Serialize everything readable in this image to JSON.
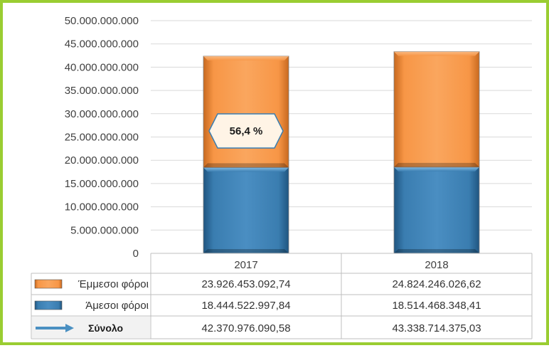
{
  "chart_data": {
    "type": "bar",
    "stacked": true,
    "categories": [
      "2017",
      "2018"
    ],
    "series": [
      {
        "name": "Άμεσοι φόροι",
        "values": [
          18444522997.84,
          18514468348.41
        ],
        "color": "#3A7DB0",
        "labels": [
          "18.444.522.997,84",
          "18.514.468.348,41"
        ]
      },
      {
        "name": "Έμμεσοι φόροι",
        "values": [
          23926453092.74,
          24824246026.62
        ],
        "color": "#F79646",
        "labels": [
          "23.926.453.092,74",
          "24.824.246.026,62"
        ]
      }
    ],
    "totals": {
      "name": "Σύνολο",
      "values": [
        42370976090.58,
        43338714375.03
      ],
      "labels": [
        "42.370.976.090,58",
        "43.338.714.375,03"
      ]
    },
    "ylim": [
      0,
      50000000000
    ],
    "yticks": [
      "0",
      "5.000.000.000",
      "10.000.000.000",
      "15.000.000.000",
      "20.000.000.000",
      "25.000.000.000",
      "30.000.000.000",
      "35.000.000.000",
      "40.000.000.000",
      "45.000.000.000",
      "50.000.000.000"
    ],
    "annotation": {
      "text": "56,4 %",
      "category": "2017"
    },
    "grid": true,
    "legend": "data-table"
  },
  "colors": {
    "border": "#9ACD32",
    "indirect": "#F79646",
    "direct": "#3A7DB0",
    "total_arrow": "#4A90C2"
  }
}
